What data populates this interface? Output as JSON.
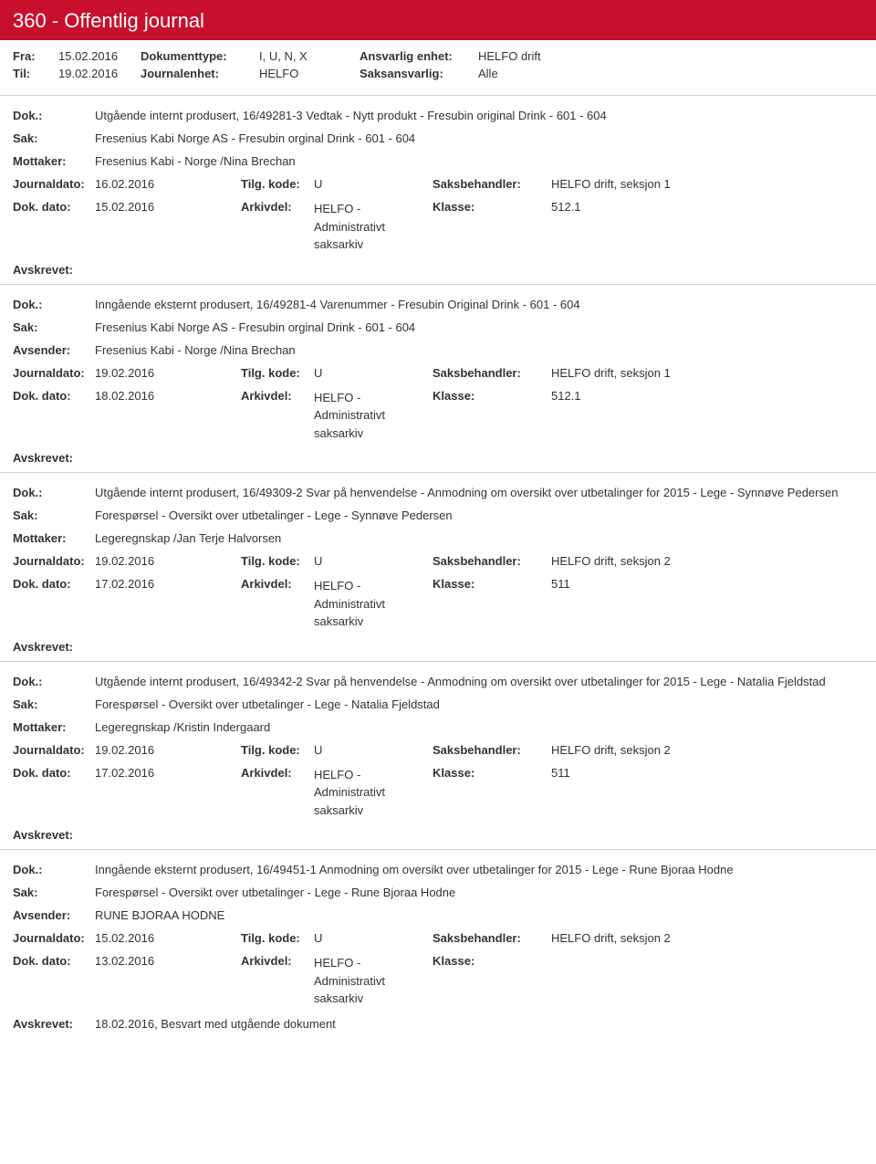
{
  "header": {
    "title": "360 - Offentlig journal"
  },
  "meta": {
    "fra_label": "Fra:",
    "fra_value": "15.02.2016",
    "til_label": "Til:",
    "til_value": "19.02.2016",
    "doktype_label": "Dokumenttype:",
    "doktype_value": "I, U, N, X",
    "journalenhet_label": "Journalenhet:",
    "journalenhet_value": "HELFO",
    "ansvarlig_label": "Ansvarlig enhet:",
    "ansvarlig_value": "HELFO drift",
    "saksansvarlig_label": "Saksansvarlig:",
    "saksansvarlig_value": "Alle"
  },
  "labels": {
    "dok": "Dok.:",
    "sak": "Sak:",
    "mottaker": "Mottaker:",
    "avsender": "Avsender:",
    "journaldato": "Journaldato:",
    "tilgkode": "Tilg. kode:",
    "saksbehandler": "Saksbehandler:",
    "dokdato": "Dok. dato:",
    "arkivdel": "Arkivdel:",
    "klasse": "Klasse:",
    "avskrevet": "Avskrevet:"
  },
  "entries": [
    {
      "dok": "Utgående internt produsert, 16/49281-3 Vedtak - Nytt produkt - Fresubin original Drink - 601 - 604",
      "sak": "Fresenius Kabi Norge AS - Fresubin orginal Drink - 601 - 604",
      "party_label": "Mottaker:",
      "party": "Fresenius Kabi - Norge /Nina Brechan",
      "journaldato": "16.02.2016",
      "tilgkode": "U",
      "saksbehandler": "HELFO drift, seksjon 1",
      "dokdato": "15.02.2016",
      "arkivdel": "HELFO - Administrativt saksarkiv",
      "klasse": "512.1",
      "avskrevet": ""
    },
    {
      "dok": "Inngående eksternt produsert, 16/49281-4 Varenummer - Fresubin Original Drink - 601 - 604",
      "sak": "Fresenius Kabi Norge AS - Fresubin orginal Drink - 601 - 604",
      "party_label": "Avsender:",
      "party": "Fresenius Kabi - Norge /Nina Brechan",
      "journaldato": "19.02.2016",
      "tilgkode": "U",
      "saksbehandler": "HELFO drift, seksjon 1",
      "dokdato": "18.02.2016",
      "arkivdel": "HELFO - Administrativt saksarkiv",
      "klasse": "512.1",
      "avskrevet": ""
    },
    {
      "dok": "Utgående internt produsert, 16/49309-2 Svar på henvendelse - Anmodning om oversikt over utbetalinger for 2015 - Lege - Synnøve Pedersen",
      "sak": "Forespørsel - Oversikt over utbetalinger - Lege - Synnøve Pedersen",
      "party_label": "Mottaker:",
      "party": "Legeregnskap /Jan Terje Halvorsen",
      "journaldato": "19.02.2016",
      "tilgkode": "U",
      "saksbehandler": "HELFO drift, seksjon 2",
      "dokdato": "17.02.2016",
      "arkivdel": "HELFO - Administrativt saksarkiv",
      "klasse": "511",
      "avskrevet": ""
    },
    {
      "dok": "Utgående internt produsert, 16/49342-2 Svar på henvendelse - Anmodning om oversikt over utbetalinger for 2015 - Lege - Natalia Fjeldstad",
      "sak": "Forespørsel - Oversikt over utbetalinger - Lege - Natalia Fjeldstad",
      "party_label": "Mottaker:",
      "party": "Legeregnskap /Kristin Indergaard",
      "journaldato": "19.02.2016",
      "tilgkode": "U",
      "saksbehandler": "HELFO drift, seksjon 2",
      "dokdato": "17.02.2016",
      "arkivdel": "HELFO - Administrativt saksarkiv",
      "klasse": "511",
      "avskrevet": ""
    },
    {
      "dok": "Inngående eksternt produsert, 16/49451-1 Anmodning om oversikt over utbetalinger for 2015 - Lege - Rune Bjoraa Hodne",
      "sak": "Forespørsel - Oversikt over utbetalinger - Lege - Rune Bjoraa Hodne",
      "party_label": "Avsender:",
      "party": "RUNE BJORAA HODNE",
      "journaldato": "15.02.2016",
      "tilgkode": "U",
      "saksbehandler": "HELFO drift, seksjon 2",
      "dokdato": "13.02.2016",
      "arkivdel": "HELFO - Administrativt saksarkiv",
      "klasse": "",
      "avskrevet": "18.02.2016, Besvart med utgående dokument"
    }
  ]
}
